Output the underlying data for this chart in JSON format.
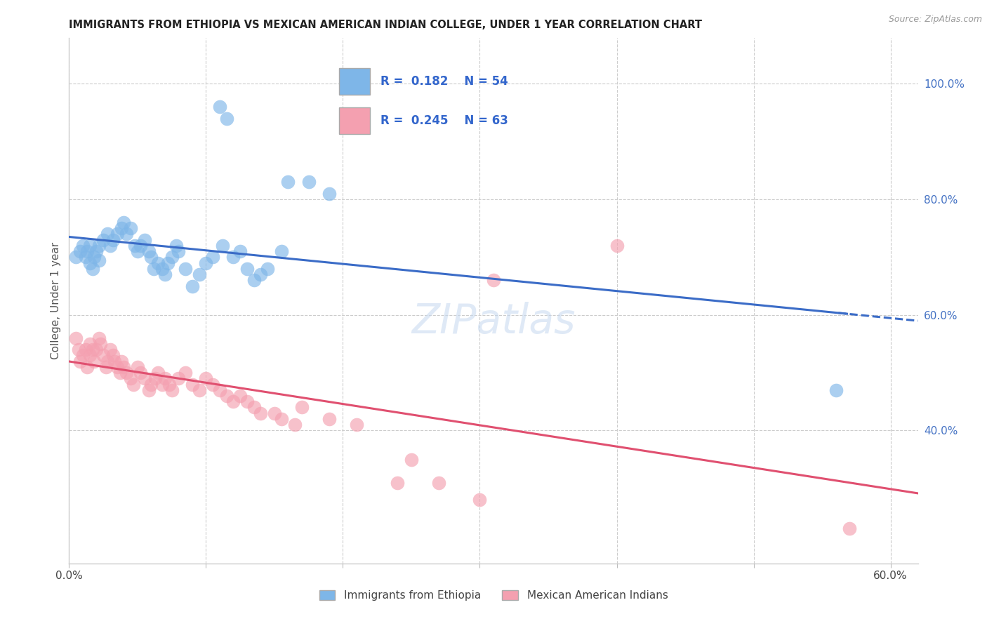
{
  "title": "IMMIGRANTS FROM ETHIOPIA VS MEXICAN AMERICAN INDIAN COLLEGE, UNDER 1 YEAR CORRELATION CHART",
  "source": "Source: ZipAtlas.com",
  "ylabel": "College, Under 1 year",
  "xlim": [
    0.0,
    0.62
  ],
  "ylim": [
    0.17,
    1.08
  ],
  "xtick_vals": [
    0.0,
    0.1,
    0.2,
    0.3,
    0.4,
    0.5,
    0.6
  ],
  "xtick_labels": [
    "0.0%",
    "",
    "",
    "",
    "",
    "",
    "60.0%"
  ],
  "ytick_vals": [
    0.4,
    0.6,
    0.8,
    1.0
  ],
  "ytick_labels": [
    "40.0%",
    "60.0%",
    "80.0%",
    "100.0%"
  ],
  "blue_R": 0.182,
  "blue_N": 54,
  "pink_R": 0.245,
  "pink_N": 63,
  "blue_color": "#7EB6E8",
  "pink_color": "#F4A0B0",
  "blue_line_color": "#3B6CC7",
  "pink_line_color": "#E05070",
  "legend_label_blue": "Immigrants from Ethiopia",
  "legend_label_pink": "Mexican American Indians",
  "watermark": "ZIPatlas",
  "background_color": "#FFFFFF",
  "grid_color": "#CCCCCC",
  "blue_x": [
    0.005,
    0.008,
    0.01,
    0.012,
    0.013,
    0.015,
    0.015,
    0.017,
    0.018,
    0.02,
    0.022,
    0.022,
    0.025,
    0.028,
    0.03,
    0.032,
    0.035,
    0.038,
    0.04,
    0.042,
    0.045,
    0.048,
    0.05,
    0.052,
    0.055,
    0.058,
    0.06,
    0.062,
    0.065,
    0.068,
    0.07,
    0.072,
    0.075,
    0.078,
    0.08,
    0.085,
    0.09,
    0.095,
    0.1,
    0.105,
    0.11,
    0.112,
    0.115,
    0.12,
    0.125,
    0.13,
    0.135,
    0.14,
    0.145,
    0.155,
    0.16,
    0.175,
    0.19,
    0.56
  ],
  "blue_y": [
    0.7,
    0.71,
    0.72,
    0.7,
    0.71,
    0.69,
    0.72,
    0.68,
    0.7,
    0.71,
    0.695,
    0.72,
    0.73,
    0.74,
    0.72,
    0.73,
    0.74,
    0.75,
    0.76,
    0.74,
    0.75,
    0.72,
    0.71,
    0.72,
    0.73,
    0.71,
    0.7,
    0.68,
    0.69,
    0.68,
    0.67,
    0.69,
    0.7,
    0.72,
    0.71,
    0.68,
    0.65,
    0.67,
    0.69,
    0.7,
    0.96,
    0.72,
    0.94,
    0.7,
    0.71,
    0.68,
    0.66,
    0.67,
    0.68,
    0.71,
    0.83,
    0.83,
    0.81,
    0.47
  ],
  "pink_x": [
    0.005,
    0.007,
    0.008,
    0.01,
    0.012,
    0.013,
    0.015,
    0.015,
    0.017,
    0.018,
    0.02,
    0.022,
    0.023,
    0.025,
    0.027,
    0.028,
    0.03,
    0.032,
    0.033,
    0.035,
    0.037,
    0.038,
    0.04,
    0.042,
    0.045,
    0.047,
    0.05,
    0.052,
    0.055,
    0.058,
    0.06,
    0.063,
    0.065,
    0.068,
    0.07,
    0.073,
    0.075,
    0.08,
    0.085,
    0.09,
    0.095,
    0.1,
    0.105,
    0.11,
    0.115,
    0.12,
    0.125,
    0.13,
    0.135,
    0.14,
    0.15,
    0.155,
    0.165,
    0.17,
    0.19,
    0.21,
    0.24,
    0.25,
    0.27,
    0.3,
    0.31,
    0.4,
    0.57
  ],
  "pink_y": [
    0.56,
    0.54,
    0.52,
    0.53,
    0.54,
    0.51,
    0.53,
    0.55,
    0.54,
    0.52,
    0.54,
    0.56,
    0.55,
    0.53,
    0.51,
    0.52,
    0.54,
    0.53,
    0.52,
    0.51,
    0.5,
    0.52,
    0.51,
    0.5,
    0.49,
    0.48,
    0.51,
    0.5,
    0.49,
    0.47,
    0.48,
    0.49,
    0.5,
    0.48,
    0.49,
    0.48,
    0.47,
    0.49,
    0.5,
    0.48,
    0.47,
    0.49,
    0.48,
    0.47,
    0.46,
    0.45,
    0.46,
    0.45,
    0.44,
    0.43,
    0.43,
    0.42,
    0.41,
    0.44,
    0.42,
    0.41,
    0.31,
    0.35,
    0.31,
    0.28,
    0.66,
    0.72,
    0.23
  ]
}
